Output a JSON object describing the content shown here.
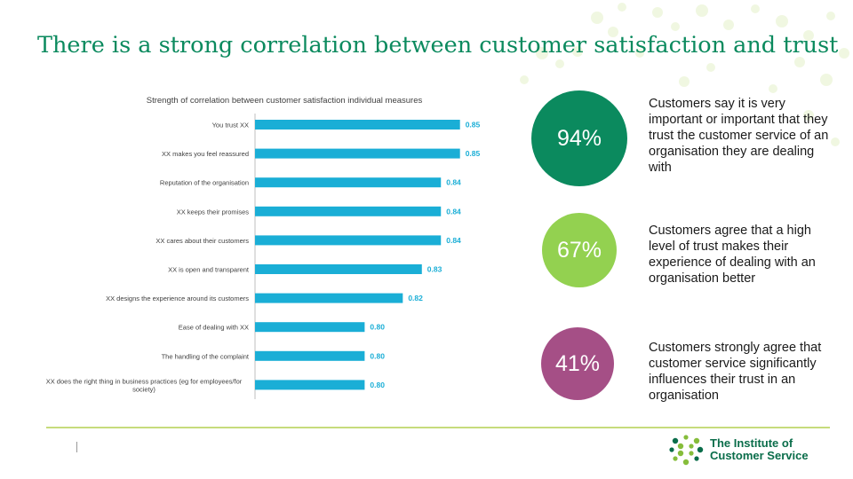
{
  "slide": {
    "title": "There is a strong correlation between customer satisfaction and trust"
  },
  "chart_data": {
    "type": "bar",
    "orientation": "horizontal",
    "title": "Strength of correlation between customer satisfaction individual measures",
    "categories": [
      "You trust XX",
      "XX makes you feel reassured",
      "Reputation of the organisation",
      "XX keeps their promises",
      "XX cares about their customers",
      "XX is open and transparent",
      "XX designs the experience around its customers",
      "Ease of dealing with XX",
      "The handling of the complaint",
      [
        "XX does the right thing in business practices (eg for employees/for",
        "society)"
      ]
    ],
    "values": [
      0.85,
      0.85,
      0.84,
      0.84,
      0.84,
      0.83,
      0.82,
      0.8,
      0.8,
      0.8
    ],
    "data_labels": [
      "0.85",
      "0.85",
      "0.84",
      "0.84",
      "0.84",
      "0.83",
      "0.82",
      "0.80",
      "0.80",
      "0.80"
    ],
    "xlim": [
      0.7425,
      0.9
    ],
    "bar_color": "#1aaed6",
    "label_color": "#1aaed6",
    "grid": false,
    "xaxis_visible": false
  },
  "stats": [
    {
      "value": "94%",
      "text": "Customers say it is very important or important that they trust the customer service of an organisation they are dealing with",
      "color": "#0b8a5e"
    },
    {
      "value": "67%",
      "text": "Customers agree that a high level of trust makes their experience of dealing with an organisation better",
      "color": "#93d150"
    },
    {
      "value": "41%",
      "text": "Customers strongly agree that customer service significantly influences their trust in an organisation",
      "color": "#a54f86"
    }
  ],
  "footer": {
    "logo_line1": "The Institute of",
    "logo_line2": "Customer Service",
    "logo_color": "#0a6d4a",
    "logo_dot_color": "#86bd3b",
    "rule_color": "#c6dc7c"
  }
}
